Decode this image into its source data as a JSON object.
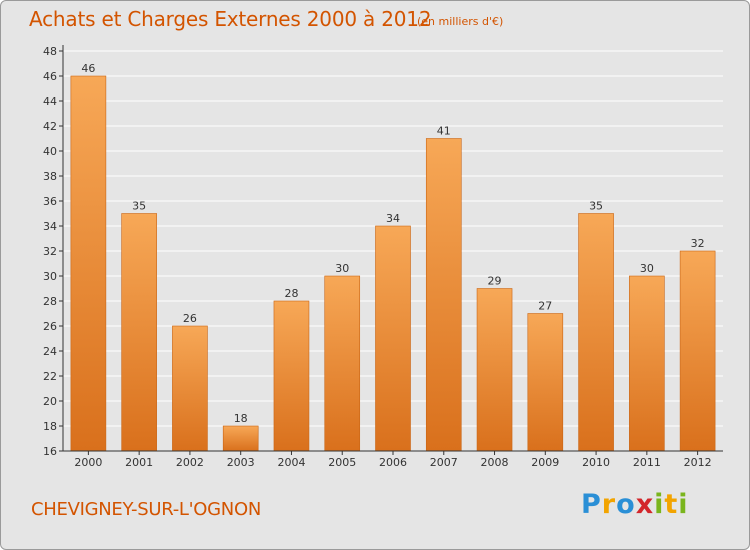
{
  "header": {
    "title": "Achats et Charges Externes 2000 à 2012",
    "unit_note": "(en milliers d'€)"
  },
  "footer": {
    "commune": "CHEVIGNEY-SUR-L'OGNON",
    "logo": {
      "letters": [
        "P",
        "r",
        "o",
        "x",
        "i",
        "t",
        "i"
      ],
      "colors": [
        "#2a8fd6",
        "#f2a400",
        "#2a8fd6",
        "#d3262b",
        "#7ab51d",
        "#f2a400",
        "#7ab51d"
      ]
    }
  },
  "chart_data": {
    "type": "bar",
    "title": "Achats et Charges Externes 2000 à 2012",
    "subtitle": "(en milliers d'€)",
    "xlabel": "",
    "ylabel": "",
    "categories": [
      "2000",
      "2001",
      "2002",
      "2003",
      "2004",
      "2005",
      "2006",
      "2007",
      "2008",
      "2009",
      "2010",
      "2011",
      "2012"
    ],
    "values": [
      46,
      35,
      26,
      18,
      28,
      30,
      34,
      41,
      29,
      27,
      35,
      30,
      32
    ],
    "data_labels": [
      "46",
      "35",
      "26",
      "18",
      "28",
      "30",
      "34",
      "41",
      "29",
      "27",
      "35",
      "30",
      "32"
    ],
    "ylim": [
      16,
      48
    ],
    "yticks": [
      "16",
      "18",
      "20",
      "22",
      "24",
      "26",
      "28",
      "30",
      "32",
      "34",
      "36",
      "38",
      "40",
      "42",
      "44",
      "46",
      "48"
    ],
    "grid": true,
    "legend": "none",
    "colors": {
      "bar_top": "#f7a857",
      "bar_bottom": "#d9701c",
      "bar_edge": "#c96515",
      "grid": "#ffffff",
      "axis": "#333333",
      "plot_background": "#e5e5e5"
    }
  }
}
